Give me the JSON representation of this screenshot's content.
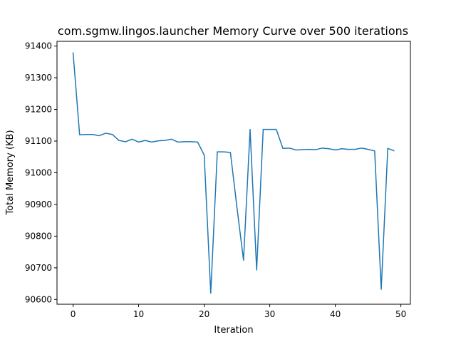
{
  "chart_data": {
    "type": "line",
    "title": "com.sgmw.lingos.launcher Memory Curve over 500 iterations",
    "xlabel": "Iteration",
    "ylabel": "Total Memory (KB)",
    "xlim": [
      -2.45,
      51.45
    ],
    "ylim": [
      90585,
      91415
    ],
    "xticks": [
      0,
      10,
      20,
      30,
      40,
      50
    ],
    "yticks": [
      90600,
      90700,
      90800,
      90900,
      91000,
      91100,
      91200,
      91300,
      91400
    ],
    "grid": false,
    "colors": {
      "line": "#1f77b4"
    },
    "series": [
      {
        "x": [
          0,
          1,
          2,
          3,
          4,
          5,
          6,
          7,
          8,
          9,
          10,
          11,
          12,
          13,
          14,
          15,
          16,
          17,
          18,
          19,
          20,
          21,
          22,
          23,
          24,
          25,
          26,
          27,
          28,
          29,
          30,
          31,
          32,
          33,
          34,
          35,
          36,
          37,
          38,
          39,
          40,
          41,
          42,
          43,
          44,
          45,
          46,
          47,
          48,
          49
        ],
        "values": [
          91380,
          91120,
          91121,
          91121,
          91117,
          91125,
          91121,
          91102,
          91098,
          91106,
          91097,
          91102,
          91097,
          91101,
          91102,
          91106,
          91097,
          91098,
          91098,
          91097,
          91056,
          90620,
          91066,
          91066,
          91064,
          90890,
          90724,
          91137,
          90693,
          91137,
          91137,
          91137,
          91077,
          91078,
          91072,
          91073,
          91074,
          91073,
          91078,
          91076,
          91072,
          91076,
          91074,
          91074,
          91078,
          91074,
          91069,
          90632,
          91077,
          91069
        ]
      }
    ]
  }
}
